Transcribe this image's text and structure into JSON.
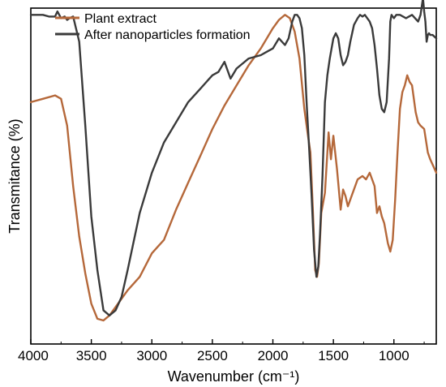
{
  "chart_data": {
    "type": "line",
    "title": "",
    "xlabel": "Wavenumber (cm⁻¹)",
    "ylabel": "Transmitance (%)",
    "xlim": [
      4000,
      650
    ],
    "x_reversed": true,
    "ylim": [
      0,
      100
    ],
    "y_ticks_shown": false,
    "x_ticks": [
      4000,
      3500,
      3000,
      2500,
      2000,
      1500,
      1000
    ],
    "x_tick_labels": [
      "4000",
      "3500",
      "3000",
      "2500",
      "2000",
      "1500",
      "1000"
    ],
    "legend_position": "top-left",
    "colors": {
      "plant_extract": "#b5683a",
      "after_nanoparticles": "#3a3a3a"
    },
    "series": [
      {
        "name": "Plant extract",
        "color": "#b5683a",
        "x": [
          4000,
          3900,
          3800,
          3750,
          3700,
          3650,
          3600,
          3550,
          3500,
          3450,
          3400,
          3350,
          3300,
          3200,
          3100,
          3000,
          2950,
          2900,
          2800,
          2700,
          2600,
          2500,
          2400,
          2300,
          2200,
          2100,
          2000,
          1950,
          1900,
          1860,
          1820,
          1780,
          1740,
          1710,
          1690,
          1670,
          1650,
          1635,
          1620,
          1600,
          1570,
          1540,
          1520,
          1500,
          1470,
          1440,
          1420,
          1400,
          1380,
          1350,
          1300,
          1260,
          1230,
          1200,
          1180,
          1160,
          1140,
          1120,
          1100,
          1080,
          1050,
          1030,
          1010,
          990,
          970,
          950,
          930,
          910,
          890,
          870,
          850,
          820,
          800,
          780,
          750,
          720,
          700,
          650
        ],
        "y": [
          72,
          73,
          74,
          73,
          65,
          47,
          32,
          21,
          12,
          7.5,
          7,
          8.5,
          11,
          16,
          20,
          27,
          29,
          31,
          40,
          48,
          56,
          64,
          71,
          77,
          83,
          88,
          94,
          96.5,
          98,
          97,
          93,
          85,
          70,
          62,
          57,
          40,
          22,
          20,
          24,
          39,
          45,
          63,
          55,
          62,
          52,
          40,
          46,
          44,
          41,
          44,
          49,
          50,
          49,
          51,
          49,
          47,
          39,
          41,
          38,
          36,
          30,
          27.5,
          31,
          43,
          57,
          70,
          75,
          77,
          80,
          78,
          77,
          69,
          66,
          65,
          64,
          57,
          55,
          51
        ]
      },
      {
        "name": "After nanoparticles formation",
        "color": "#3a3a3a",
        "x": [
          4000,
          3900,
          3850,
          3800,
          3780,
          3750,
          3720,
          3700,
          3680,
          3650,
          3600,
          3550,
          3500,
          3450,
          3400,
          3350,
          3300,
          3250,
          3200,
          3100,
          3000,
          2900,
          2800,
          2700,
          2600,
          2500,
          2450,
          2400,
          2350,
          2300,
          2200,
          2100,
          2050,
          2000,
          1950,
          1900,
          1870,
          1840,
          1820,
          1800,
          1780,
          1760,
          1740,
          1720,
          1700,
          1680,
          1660,
          1640,
          1625,
          1610,
          1590,
          1570,
          1550,
          1530,
          1500,
          1480,
          1460,
          1440,
          1420,
          1400,
          1380,
          1360,
          1330,
          1300,
          1280,
          1260,
          1240,
          1220,
          1200,
          1180,
          1160,
          1140,
          1120,
          1100,
          1080,
          1060,
          1040,
          1030,
          1020,
          1000,
          980,
          950,
          900,
          850,
          800,
          780,
          760,
          750,
          740,
          730,
          720,
          710,
          700,
          680,
          650
        ],
        "y": [
          98,
          98,
          97.5,
          97.5,
          99,
          97,
          97.5,
          96.5,
          97,
          97.5,
          90,
          65,
          38,
          22,
          10,
          8.5,
          10,
          14,
          22,
          39,
          51,
          60,
          66,
          72,
          76,
          80,
          81,
          84,
          79,
          82,
          85,
          86,
          87,
          88,
          91,
          89,
          91,
          96,
          98,
          98,
          97,
          94,
          86,
          71,
          58,
          44,
          28,
          20,
          23,
          33,
          50,
          72,
          80,
          85,
          91,
          92.5,
          91,
          86,
          83,
          84,
          86,
          90,
          95,
          97,
          98,
          97.5,
          98,
          97,
          96,
          94,
          89,
          82,
          74,
          70,
          69,
          72,
          85,
          96,
          98,
          97,
          98,
          98,
          97,
          98,
          96,
          98,
          103,
          99,
          96,
          90,
          92,
          92.5,
          92,
          92,
          91
        ]
      }
    ]
  }
}
